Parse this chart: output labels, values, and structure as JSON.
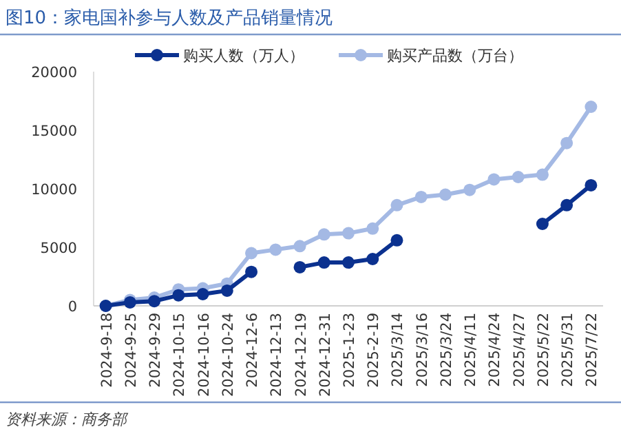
{
  "chart_data": {
    "type": "line",
    "title": "图10：家电国补参与人数及产品销量情况",
    "categories": [
      "2024-9-18",
      "2024-9-25",
      "2024-9-29",
      "2024-10-15",
      "2024-10-16",
      "2024-10-24",
      "2024-12-6",
      "2024-12-13",
      "2024-12-19",
      "2024-12-31",
      "2025-1-23",
      "2025-2-19",
      "2025/3/14",
      "2025/3/16",
      "2025/3/24",
      "2025/4/11",
      "2025/4/24",
      "2025/4/27",
      "2025/5/22",
      "2025/5/31",
      "2025/7/22"
    ],
    "series": [
      {
        "name": "购买人数（万人）",
        "color": "#0b318f",
        "values": [
          0,
          300,
          400,
          900,
          1000,
          1300,
          2900,
          null,
          3300,
          3700,
          3700,
          4000,
          5600,
          null,
          null,
          null,
          null,
          null,
          7000,
          8600,
          10300
        ]
      },
      {
        "name": "购买产品数（万台）",
        "color": "#a4b9e4",
        "values": [
          0,
          500,
          700,
          1400,
          1500,
          1900,
          4500,
          4800,
          5100,
          6100,
          6200,
          6600,
          8600,
          9300,
          9500,
          9900,
          10800,
          11000,
          11200,
          13900,
          17000
        ]
      }
    ],
    "ylim": [
      0,
      20000
    ],
    "yticks": [
      0,
      5000,
      10000,
      15000,
      20000
    ],
    "grid": false,
    "legend": "top",
    "marker": "circle",
    "line_style": "solid",
    "annotations": [
      "资料来源：商务部"
    ]
  }
}
